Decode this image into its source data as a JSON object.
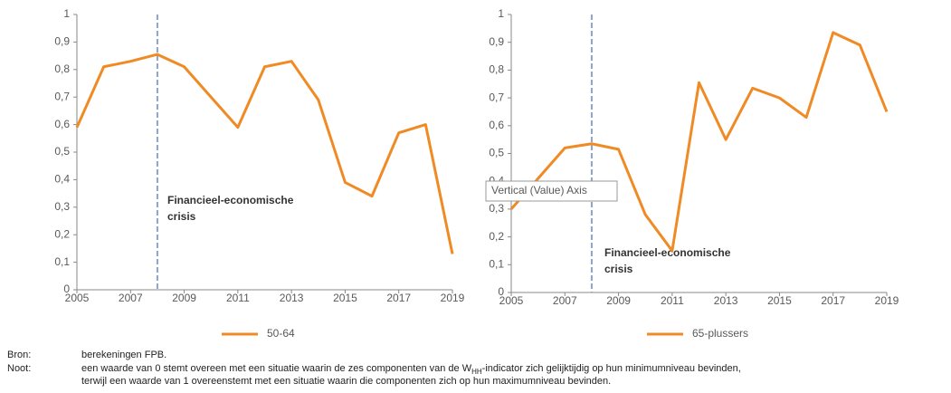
{
  "chart_data": [
    {
      "type": "line",
      "x": [
        2005,
        2006,
        2007,
        2008,
        2009,
        2010,
        2011,
        2012,
        2013,
        2014,
        2015,
        2016,
        2017,
        2018,
        2019
      ],
      "series": [
        {
          "name": "50-64",
          "color": "#f08a24",
          "values": [
            0.59,
            0.81,
            0.83,
            0.855,
            0.81,
            0.7,
            0.59,
            0.81,
            0.83,
            0.69,
            0.39,
            0.34,
            0.57,
            0.6,
            0.13
          ]
        }
      ],
      "xlim": [
        2005,
        2019
      ],
      "xticks": [
        2005,
        2007,
        2009,
        2011,
        2013,
        2015,
        2017,
        2019
      ],
      "ylim": [
        0,
        1
      ],
      "yticks": [
        0,
        {
          "value": 0.1,
          "label": "0,1"
        },
        {
          "value": 0.2,
          "label": "0,2"
        },
        {
          "value": 0.3,
          "label": "0,3"
        },
        {
          "value": 0.4,
          "label": "0,4"
        },
        {
          "value": 0.5,
          "label": "0,5"
        },
        {
          "value": 0.6,
          "label": "0,6"
        },
        {
          "value": 0.7,
          "label": "0,7"
        },
        {
          "value": 0.8,
          "label": "0,8"
        },
        {
          "value": 0.9,
          "label": "0,9"
        },
        1
      ],
      "marker_x": 2008,
      "annotation": [
        "Financieel-economische",
        "crisis"
      ]
    },
    {
      "type": "line",
      "x": [
        2005,
        2006,
        2007,
        2008,
        2009,
        2010,
        2011,
        2012,
        2013,
        2014,
        2015,
        2016,
        2017,
        2018,
        2019
      ],
      "series": [
        {
          "name": "65-plussers",
          "color": "#f08a24",
          "values": [
            0.3,
            0.41,
            0.52,
            0.535,
            0.515,
            0.28,
            0.15,
            0.755,
            0.55,
            0.735,
            0.7,
            0.63,
            0.935,
            0.89,
            0.65
          ]
        }
      ],
      "xlim": [
        2005,
        2019
      ],
      "xticks": [
        2005,
        2007,
        2009,
        2011,
        2013,
        2015,
        2017,
        2019
      ],
      "ylim": [
        0,
        1
      ],
      "yticks": [
        0,
        {
          "value": 0.1,
          "label": "0,1"
        },
        {
          "value": 0.2,
          "label": "0,2"
        },
        {
          "value": 0.3,
          "label": "0,3"
        },
        {
          "value": 0.4,
          "label": "0,4"
        },
        {
          "value": 0.5,
          "label": "0,5"
        },
        {
          "value": 0.6,
          "label": "0,6"
        },
        {
          "value": 0.7,
          "label": "0,7"
        },
        {
          "value": 0.8,
          "label": "0,8"
        },
        {
          "value": 0.9,
          "label": "0,9"
        },
        1
      ],
      "marker_x": 2008,
      "annotation": [
        "Financieel-economische",
        "crisis"
      ],
      "tooltip": "Vertical (Value) Axis"
    }
  ],
  "notes": {
    "source_label": "Bron:",
    "source": "berekeningen FPB.",
    "note_label": "Noot:",
    "note_line1_a": "een waarde van 0 stemt overeen met een situatie waarin de zes componenten van de W",
    "note_line1_sub": "HH",
    "note_line1_b": "-indicator zich gelijktijdig op hun minimumniveau bevinden,",
    "note_line2": "terwijl een waarde van 1 overeenstemt met een situatie waarin die componenten zich op hun maximumniveau bevinden."
  }
}
